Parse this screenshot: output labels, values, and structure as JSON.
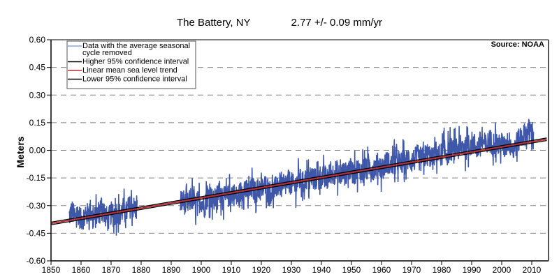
{
  "chart_data": {
    "type": "line",
    "title": "The Battery, NY",
    "subtitle": "2.77 +/- 0.09 mm/yr",
    "source": "Source: NOAA",
    "xlabel": "",
    "ylabel": "Meters",
    "xlim": [
      1850,
      2015
    ],
    "ylim": [
      -0.6,
      0.6
    ],
    "x_ticks": [
      1850,
      1860,
      1870,
      1880,
      1890,
      1900,
      1910,
      1920,
      1930,
      1940,
      1950,
      1960,
      1970,
      1980,
      1990,
      2000,
      2010
    ],
    "y_ticks": [
      0.6,
      0.45,
      0.3,
      0.15,
      0.0,
      -0.15,
      -0.3,
      -0.45,
      -0.6
    ],
    "y_tick_labels": [
      "0.60",
      "0.45",
      "0.30",
      "0.15",
      "0.00",
      "-0.15",
      "-0.30",
      "-0.45",
      "-0.60"
    ],
    "grid": "horizontal-dashed",
    "legend_position": "top-left",
    "legend": [
      {
        "label_lines": [
          "Data with the average seasonal",
          "cycle removed"
        ],
        "color": "#8fa6d6"
      },
      {
        "label_lines": [
          "Higher 95% confidence interval"
        ],
        "color": "#000000"
      },
      {
        "label_lines": [
          "Linear mean sea level trend"
        ],
        "color": "#c0282d"
      },
      {
        "label_lines": [
          "Lower 95% confidence interval"
        ],
        "color": "#000000"
      }
    ],
    "series": [
      {
        "name": "Data with the average seasonal cycle removed",
        "color": "#3f57a8",
        "segments": [
          {
            "x_start": 1856,
            "x_step": 1,
            "values": [
              -0.36,
              -0.33,
              -0.37,
              -0.34,
              -0.38,
              -0.36,
              -0.35,
              -0.32,
              -0.37,
              -0.36,
              -0.33,
              -0.29,
              -0.35,
              -0.38,
              -0.34,
              -0.36,
              -0.33,
              -0.35,
              -0.32,
              -0.34,
              -0.31,
              -0.3,
              -0.32
            ]
          },
          {
            "x_start": 1893,
            "x_step": 1,
            "values": [
              -0.29,
              -0.27,
              -0.3,
              -0.28,
              -0.26,
              -0.3,
              -0.28,
              -0.27,
              -0.31,
              -0.25,
              -0.24,
              -0.28,
              -0.26,
              -0.22,
              -0.24,
              -0.27,
              -0.25,
              -0.23,
              -0.24,
              -0.26,
              -0.23,
              -0.21,
              -0.22,
              -0.24,
              -0.2,
              -0.23,
              -0.21,
              -0.22,
              -0.19,
              -0.2,
              -0.23,
              -0.22,
              -0.2,
              -0.18,
              -0.21,
              -0.19,
              -0.17,
              -0.18,
              -0.2,
              -0.17,
              -0.16,
              -0.18,
              -0.15,
              -0.17,
              -0.14,
              -0.16,
              -0.13,
              -0.15,
              -0.14,
              -0.16,
              -0.12,
              -0.13,
              -0.11,
              -0.14,
              -0.12,
              -0.13,
              -0.1,
              -0.11,
              -0.13,
              -0.1,
              -0.12,
              -0.09,
              -0.11,
              -0.08,
              -0.1,
              -0.09,
              -0.07,
              -0.1,
              -0.08,
              -0.06,
              -0.09,
              -0.07,
              -0.05,
              -0.08,
              -0.06,
              -0.07,
              -0.04,
              -0.06,
              -0.05,
              -0.03,
              -0.06,
              -0.04,
              -0.02,
              -0.03,
              -0.05,
              -0.01,
              -0.03,
              -0.02,
              0.0,
              -0.02,
              0.01,
              -0.01,
              0.02,
              0.0,
              0.03,
              0.01,
              0.02,
              0.04,
              0.03,
              0.01,
              0.05,
              0.04,
              0.02,
              0.06,
              0.03,
              0.05,
              0.02,
              0.04,
              0.01,
              0.05,
              0.03,
              0.0,
              0.04,
              0.06,
              0.08,
              0.09,
              0.11,
              0.1
            ]
          }
        ],
        "noise_amplitude_m": 0.09
      },
      {
        "name": "Higher 95% confidence interval",
        "color": "#000000",
        "x": [
          1850,
          2015
        ],
        "y": [
          -0.39,
          0.067
        ]
      },
      {
        "name": "Linear mean sea level trend",
        "color": "#c0282d",
        "x": [
          1850,
          2015
        ],
        "y": [
          -0.397,
          0.06
        ]
      },
      {
        "name": "Lower 95% confidence interval",
        "color": "#000000",
        "x": [
          1850,
          2015
        ],
        "y": [
          -0.404,
          0.053
        ]
      }
    ]
  }
}
